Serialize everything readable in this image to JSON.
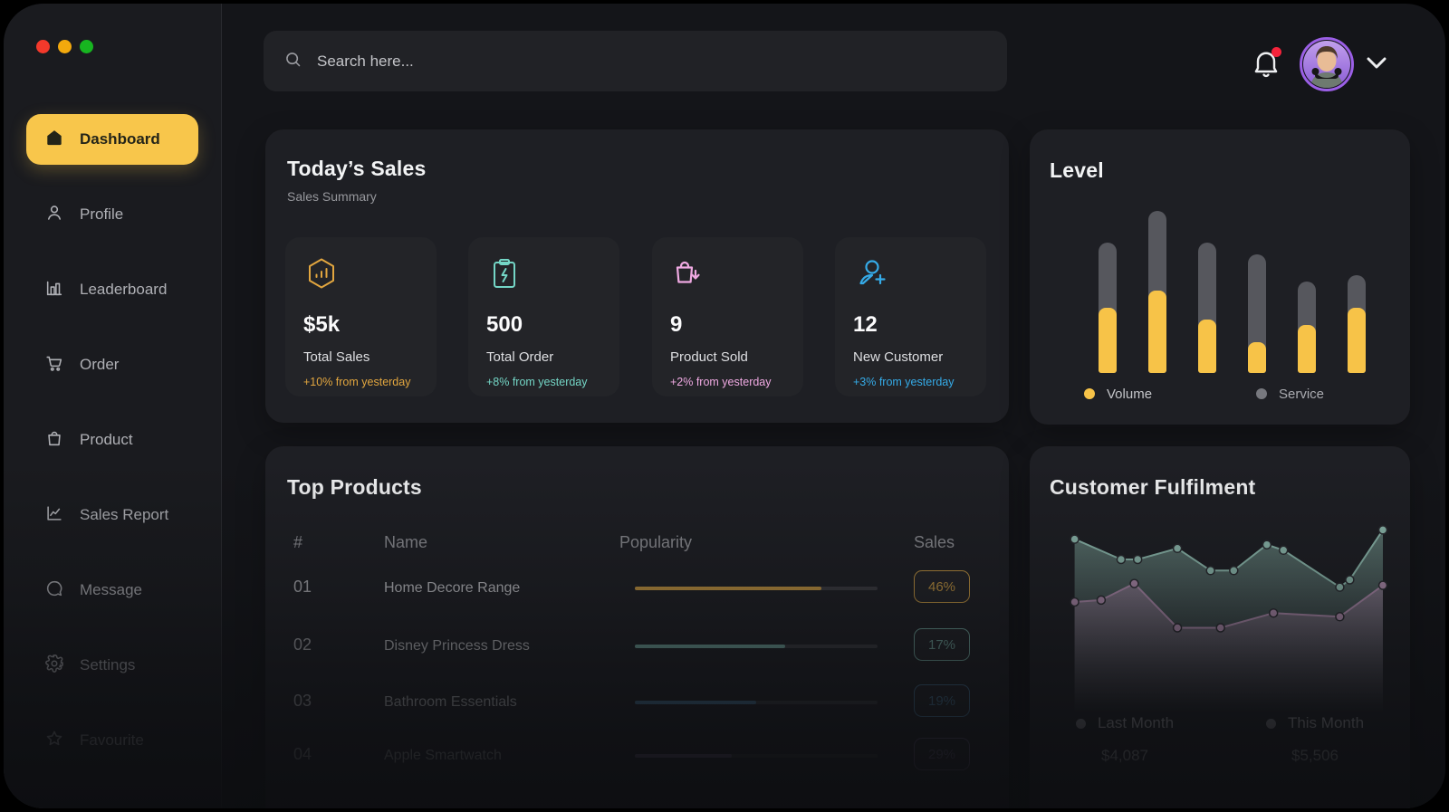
{
  "window": {
    "traffic_lights": [
      {
        "name": "close",
        "color": "#F3392B"
      },
      {
        "name": "minimize",
        "color": "#F3A90D"
      },
      {
        "name": "zoom",
        "color": "#17B520"
      }
    ]
  },
  "sidebar": {
    "items": [
      {
        "label": "Dashboard",
        "icon": "home-icon",
        "active": true
      },
      {
        "label": "Profile",
        "icon": "user-icon"
      },
      {
        "label": "Leaderboard",
        "icon": "bar-chart-icon"
      },
      {
        "label": "Order",
        "icon": "cart-icon"
      },
      {
        "label": "Product",
        "icon": "bag-icon"
      },
      {
        "label": "Sales Report",
        "icon": "line-chart-icon"
      },
      {
        "label": "Message",
        "icon": "chat-icon"
      },
      {
        "label": "Settings",
        "icon": "gear-icon"
      },
      {
        "label": "Favourite",
        "icon": "star-icon"
      }
    ]
  },
  "topbar": {
    "search_placeholder": "Search here...",
    "notification_has_badge": true
  },
  "today_sales": {
    "title": "Today’s Sales",
    "subtitle": "Sales Summary",
    "cards": [
      {
        "icon": "hexagon-chart-icon",
        "value": "$5k",
        "label": "Total Sales",
        "trend": "+10% from yesterday",
        "accent": "#E2A63F"
      },
      {
        "icon": "clipboard-bolt-icon",
        "value": "500",
        "label": "Total Order",
        "trend": "+8% from yesterday",
        "accent": "#74D6C6"
      },
      {
        "icon": "bag-down-icon",
        "value": "9",
        "label": "Product Sold",
        "trend": "+2% from yesterday",
        "accent": "#EFA9E2"
      },
      {
        "icon": "user-plus-icon",
        "value": "12",
        "label": "New Customer",
        "trend": "+3% from yesterday",
        "accent": "#35ABE8"
      }
    ]
  },
  "level_chart": {
    "type": "bar",
    "title": "Level",
    "legend": [
      {
        "label": "Volume",
        "color": "#F7C348"
      },
      {
        "label": "Service",
        "color": "#77787E"
      }
    ],
    "volume_color": "#F7C348",
    "service_color": "#56575D",
    "bars": [
      {
        "volume": 38,
        "service": 38
      },
      {
        "volume": 48,
        "service": 46
      },
      {
        "volume": 31,
        "service": 45
      },
      {
        "volume": 18,
        "service": 51
      },
      {
        "volume": 28,
        "service": 25
      },
      {
        "volume": 38,
        "service": 19
      }
    ]
  },
  "top_products": {
    "title": "Top Products",
    "columns": [
      "#",
      "Name",
      "Popularity",
      "Sales"
    ],
    "rows": [
      {
        "num": "01",
        "name": "Home Decore Range",
        "popularity_pct": 77,
        "sales": "46%",
        "color": "#BE9240",
        "opacity": 1
      },
      {
        "num": "02",
        "name": "Disney Princess Dress",
        "popularity_pct": 62,
        "sales": "17%",
        "color": "#70A39B",
        "opacity": 0.95
      },
      {
        "num": "03",
        "name": "Bathroom Essentials",
        "popularity_pct": 50,
        "sales": "19%",
        "color": "#47789B",
        "opacity": 0.8
      },
      {
        "num": "04",
        "name": "Apple Smartwatch",
        "popularity_pct": 40,
        "sales": "29%",
        "color": "#6F5F85",
        "opacity": 0.6
      }
    ]
  },
  "customer_fulfilment": {
    "title": "Customer Fulfilment",
    "type": "area",
    "series": [
      {
        "name": "Last Month",
        "total": "$4,087",
        "color": "#AE8BAC",
        "points": [
          [
            7,
            51
          ],
          [
            15,
            52
          ],
          [
            25,
            61
          ],
          [
            38,
            37
          ],
          [
            51,
            37
          ],
          [
            67,
            45
          ],
          [
            87,
            43
          ],
          [
            100,
            60
          ]
        ]
      },
      {
        "name": "This Month",
        "total": "$5,506",
        "color": "#8FBCB0",
        "points": [
          [
            7,
            85
          ],
          [
            21,
            74
          ],
          [
            26,
            74
          ],
          [
            38,
            80
          ],
          [
            48,
            68
          ],
          [
            55,
            68
          ],
          [
            65,
            82
          ],
          [
            70,
            79
          ],
          [
            87,
            59
          ],
          [
            90,
            63
          ],
          [
            100,
            90
          ]
        ]
      }
    ]
  }
}
